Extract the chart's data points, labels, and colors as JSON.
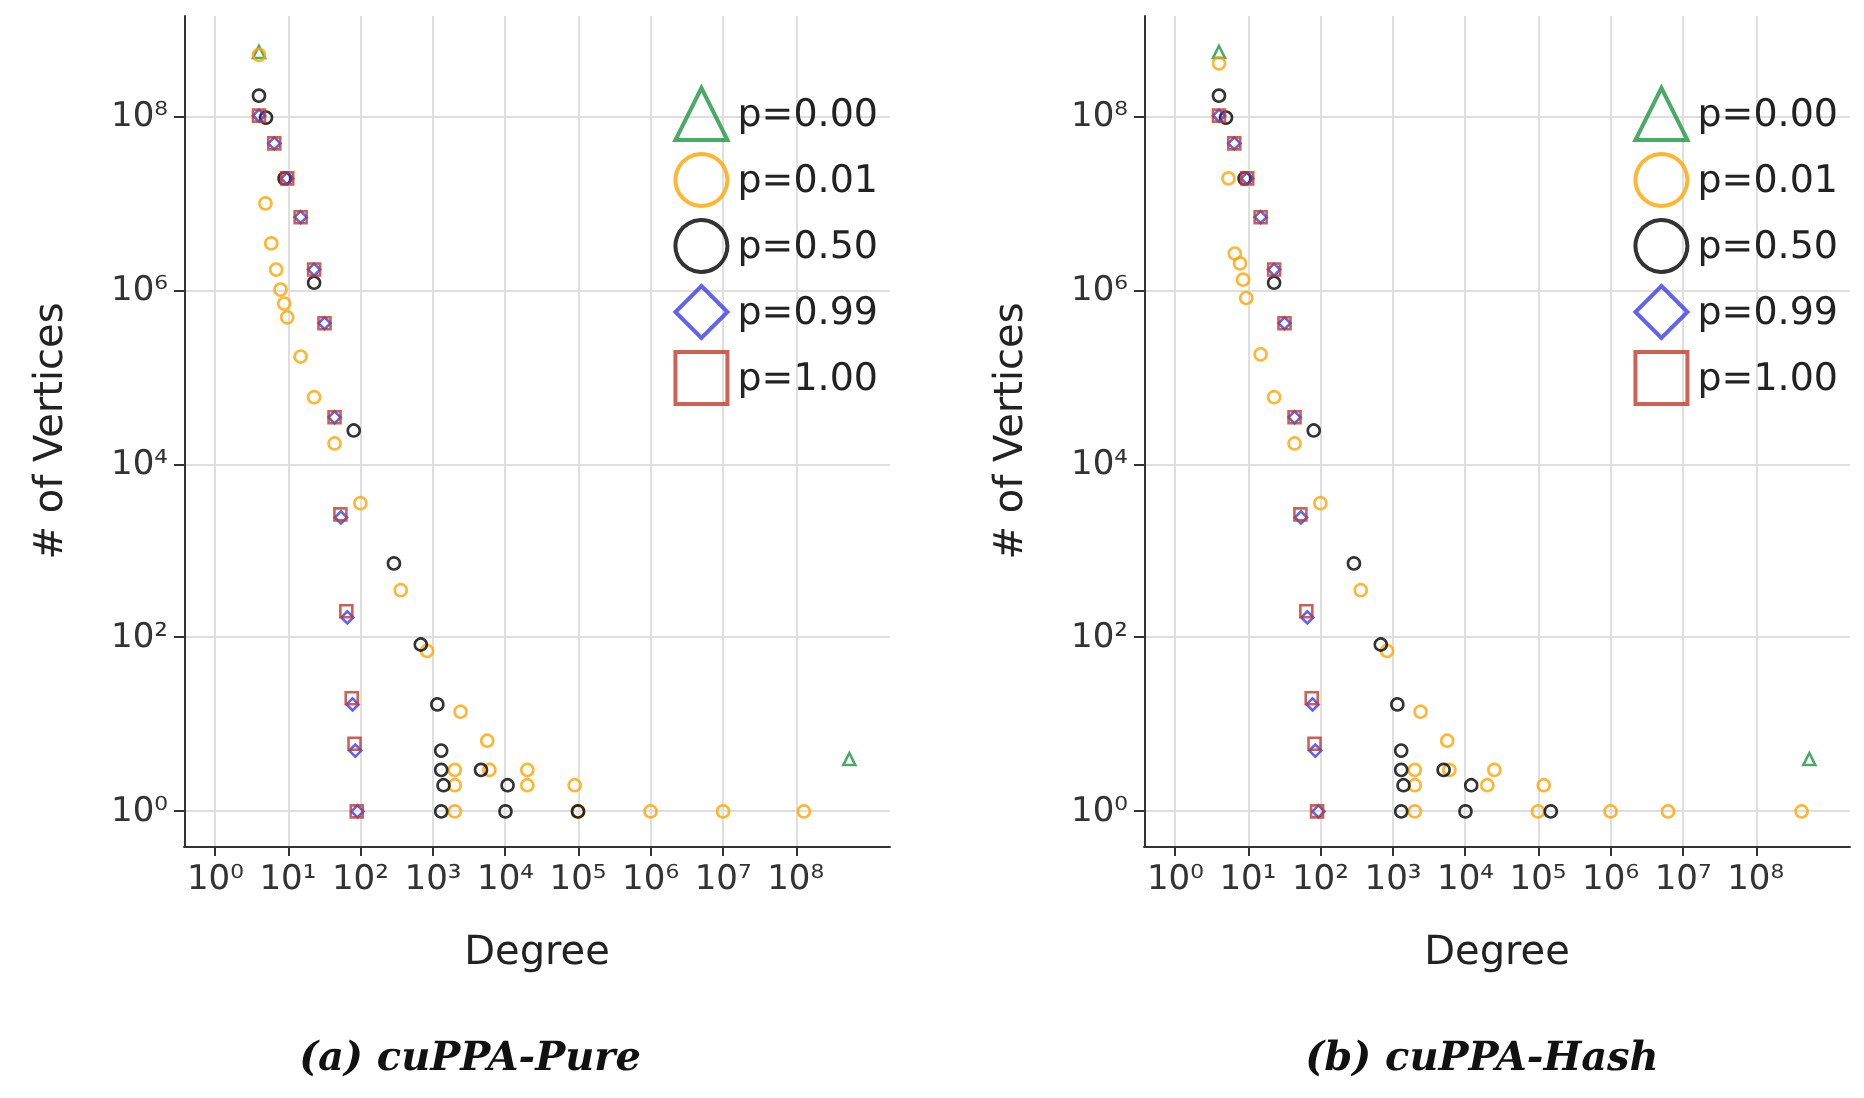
{
  "chart_data": [
    {
      "type": "scatter",
      "title": "(a) cuPPA-Pure",
      "xlabel": "Degree",
      "ylabel": "# of Vertices",
      "log": "xy",
      "grid": true,
      "legend": "top right",
      "xlim": [
        0.37,
        2000000000.0
      ],
      "ylim": [
        0.4,
        1400000000.0
      ],
      "xticks": [
        {
          "value": 1,
          "label": "10⁰"
        },
        {
          "value": 10,
          "label": "10¹"
        },
        {
          "value": 100,
          "label": "10²"
        },
        {
          "value": 1000,
          "label": "10³"
        },
        {
          "value": 10000,
          "label": "10⁴"
        },
        {
          "value": 100000,
          "label": "10⁵"
        },
        {
          "value": 1000000,
          "label": "10⁶"
        },
        {
          "value": 10000000,
          "label": "10⁷"
        },
        {
          "value": 100000000,
          "label": "10⁸"
        }
      ],
      "yticks": [
        {
          "value": 1,
          "label": "10⁰"
        },
        {
          "value": 100,
          "label": "10²"
        },
        {
          "value": 10000,
          "label": "10⁴"
        },
        {
          "value": 1000000,
          "label": "10⁶"
        },
        {
          "value": 100000000,
          "label": "10⁸"
        }
      ],
      "series": [
        {
          "name": "p=0.00",
          "color": "#1a9641",
          "marker": "triangle",
          "x": [
            4,
            550000000.0
          ],
          "values": [
            540000000.0,
            4
          ]
        },
        {
          "name": "p=0.01",
          "color": "#ffa500",
          "marker": "circle",
          "x": [
            4,
            4.9,
            5.9,
            6.9,
            7.9,
            8.9,
            9.8,
            15,
            23,
            44,
            100,
            360,
            830,
            2400,
            5600,
            2000,
            6000,
            20000,
            2000,
            20000,
            90000,
            2000,
            100000,
            1000000,
            10000000,
            130000000
          ],
          "values": [
            500000000.0,
            9800000.0,
            3400000.0,
            1700000.0,
            1000000.0,
            690000.0,
            480000.0,
            170000.0,
            58000.0,
            17000.0,
            3500,
            350,
            70,
            14,
            6.5,
            3,
            3,
            3,
            2,
            2,
            2,
            1,
            1,
            1,
            1,
            1
          ]
        },
        {
          "name": "p=0.50",
          "color": "#000000",
          "marker": "circle",
          "x": [
            4,
            5,
            9,
            23,
            81,
            290,
            680,
            1150,
            1300,
            1300,
            4600,
            1400,
            10700,
            1300,
            10000,
            100000
          ],
          "values": [
            170000000.0,
            95000000.0,
            19000000.0,
            1200000.0,
            24000.0,
            710,
            83,
            17,
            5,
            3,
            3,
            2,
            2,
            1,
            1,
            1
          ]
        },
        {
          "name": "p=0.99",
          "color": "#3a3af0",
          "marker": "diamond",
          "x": [
            4,
            6.5,
            9.8,
            15,
            23,
            32,
            44,
            54,
            66,
            78,
            85,
            91
          ],
          "values": [
            100000000.0,
            48000000.0,
            19000000.0,
            6800000.0,
            1700000.0,
            410000.0,
            34000.0,
            2400,
            170,
            17,
            5,
            1
          ]
        },
        {
          "name": "p=1.00",
          "color": "#c0392b",
          "marker": "square",
          "x": [
            4,
            6.5,
            9.8,
            15,
            23,
            32,
            44,
            53,
            64,
            76,
            83,
            89
          ],
          "values": [
            100000000.0,
            48000000.0,
            19000000.0,
            6800000.0,
            1700000.0,
            410000.0,
            34000.0,
            2600,
            200,
            20,
            6,
            1
          ]
        }
      ]
    },
    {
      "type": "scatter",
      "title": "(b) cuPPA-Hash",
      "xlabel": "Degree",
      "ylabel": "# of Vertices",
      "log": "xy",
      "grid": true,
      "legend": "top right",
      "xlim": [
        0.37,
        2000000000.0
      ],
      "ylim": [
        0.4,
        1400000000.0
      ],
      "xticks": [
        {
          "value": 1,
          "label": "10⁰"
        },
        {
          "value": 10,
          "label": "10¹"
        },
        {
          "value": 100,
          "label": "10²"
        },
        {
          "value": 1000,
          "label": "10³"
        },
        {
          "value": 10000,
          "label": "10⁴"
        },
        {
          "value": 100000,
          "label": "10⁵"
        },
        {
          "value": 1000000,
          "label": "10⁶"
        },
        {
          "value": 10000000,
          "label": "10⁷"
        },
        {
          "value": 100000000,
          "label": "10⁸"
        }
      ],
      "yticks": [
        {
          "value": 1,
          "label": "10⁰"
        },
        {
          "value": 100,
          "label": "10²"
        },
        {
          "value": 10000,
          "label": "10⁴"
        },
        {
          "value": 1000000,
          "label": "10⁶"
        },
        {
          "value": 100000000,
          "label": "10⁸"
        }
      ],
      "series": [
        {
          "name": "p=0.00",
          "color": "#1a9641",
          "marker": "triangle",
          "x": [
            4,
            550000000.0
          ],
          "values": [
            540000000.0,
            4
          ]
        },
        {
          "name": "p=0.01",
          "color": "#ffa500",
          "marker": "circle",
          "x": [
            4,
            5.4,
            6.6,
            7.8,
            8.6,
            9.5,
            15,
            23,
            44,
            100,
            360,
            830,
            2400,
            5600,
            2000,
            6000,
            25000,
            2000,
            20000,
            120000,
            2000,
            100000,
            1000000,
            6200000,
            430000000
          ],
          "values": [
            400000000.0,
            19000000.0,
            2600000.0,
            2000000.0,
            1300000.0,
            800000.0,
            180000.0,
            58000.0,
            17000.0,
            3500,
            350,
            70,
            14,
            6.5,
            3,
            3,
            3,
            2,
            2,
            2,
            1,
            1,
            1,
            1,
            1
          ]
        },
        {
          "name": "p=0.50",
          "color": "#000000",
          "marker": "circle",
          "x": [
            4,
            5,
            9,
            23,
            81,
            290,
            680,
            1150,
            1300,
            1300,
            5000,
            1400,
            12000,
            1300,
            10000,
            150000
          ],
          "values": [
            170000000.0,
            95000000.0,
            19000000.0,
            1200000.0,
            24000.0,
            710,
            83,
            17,
            5,
            3,
            3,
            2,
            2,
            1,
            1,
            1
          ]
        },
        {
          "name": "p=0.99",
          "color": "#3a3af0",
          "marker": "diamond",
          "x": [
            4,
            6.5,
            9.8,
            15,
            23,
            32,
            44,
            54,
            66,
            78,
            85,
            94
          ],
          "values": [
            100000000.0,
            48000000.0,
            19000000.0,
            6800000.0,
            1700000.0,
            410000.0,
            34000.0,
            2400,
            170,
            17,
            5,
            1
          ]
        },
        {
          "name": "p=1.00",
          "color": "#c0392b",
          "marker": "square",
          "x": [
            4,
            6.5,
            9.8,
            15,
            23,
            32,
            44,
            53,
            64,
            76,
            83,
            90
          ],
          "values": [
            100000000.0,
            48000000.0,
            19000000.0,
            6800000.0,
            1700000.0,
            410000.0,
            34000.0,
            2600,
            200,
            20,
            6,
            1
          ]
        }
      ]
    }
  ]
}
